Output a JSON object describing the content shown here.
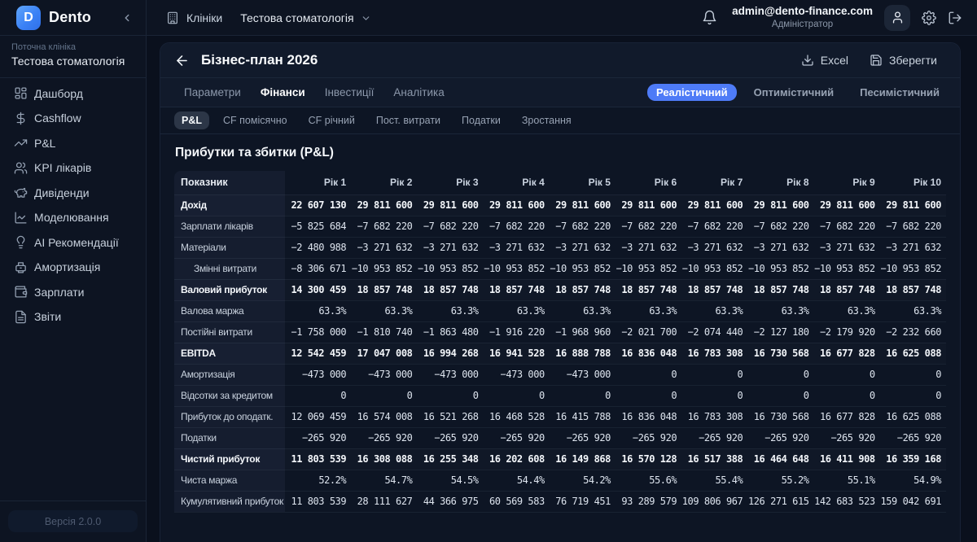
{
  "brand": {
    "logo_letter": "D",
    "name": "Dento"
  },
  "topbar": {
    "clinics_label": "Клініки",
    "clinic_selector": "Тестова стоматологія",
    "user_email": "admin@dento-finance.com",
    "user_role": "Адміністратор"
  },
  "sidebar": {
    "current_clinic_label": "Поточна клініка",
    "current_clinic": "Тестова стоматологія",
    "items": [
      {
        "id": "dashboard",
        "label": "Дашборд",
        "icon": "dashboard-icon",
        "active": false
      },
      {
        "id": "cashflow",
        "label": "Cashflow",
        "icon": "dollar-icon",
        "active": false
      },
      {
        "id": "pnl",
        "label": "P&L",
        "icon": "trending-up-icon",
        "active": false
      },
      {
        "id": "kpi-doctors",
        "label": "KPI лікарів",
        "icon": "users-icon",
        "active": false
      },
      {
        "id": "dividends",
        "label": "Дивіденди",
        "icon": "piggy-bank-icon",
        "active": false
      },
      {
        "id": "modeling",
        "label": "Моделювання",
        "icon": "chart-line-icon",
        "active": true
      },
      {
        "id": "ai-recommendations",
        "label": "AI Рекомендації",
        "icon": "lightbulb-icon",
        "active": false
      },
      {
        "id": "amortization",
        "label": "Амортизація",
        "icon": "machine-icon",
        "active": false
      },
      {
        "id": "salaries",
        "label": "Зарплати",
        "icon": "wallet-icon",
        "active": false
      },
      {
        "id": "reports",
        "label": "Звіти",
        "icon": "file-text-icon",
        "active": false
      }
    ],
    "version": "Версія 2.0.0"
  },
  "header": {
    "title": "Бізнес-план 2026",
    "excel_label": "Excel",
    "save_label": "Зберегти"
  },
  "tabs": [
    {
      "id": "parameters",
      "label": "Параметри",
      "active": false
    },
    {
      "id": "finance",
      "label": "Фінанси",
      "active": true
    },
    {
      "id": "investments",
      "label": "Інвестиції",
      "active": false
    },
    {
      "id": "analytics",
      "label": "Аналітика",
      "active": false
    }
  ],
  "scenarios": [
    {
      "id": "realistic",
      "label": "Реалістичний",
      "active": true
    },
    {
      "id": "optimistic",
      "label": "Оптимістичний",
      "active": false
    },
    {
      "id": "pessimistic",
      "label": "Песимістичний",
      "active": false
    }
  ],
  "subtabs": [
    {
      "id": "pnl",
      "label": "P&L",
      "active": true
    },
    {
      "id": "cf-monthly",
      "label": "CF помісячно",
      "active": false
    },
    {
      "id": "cf-yearly",
      "label": "CF річний",
      "active": false
    },
    {
      "id": "fixed-costs",
      "label": "Пост. витрати",
      "active": false
    },
    {
      "id": "taxes",
      "label": "Податки",
      "active": false
    },
    {
      "id": "growth",
      "label": "Зростання",
      "active": false
    }
  ],
  "section_title": "Прибутки та збитки (P&L)",
  "colors": {
    "accent": "#4e7bf7",
    "logo_gradient_start": "#60a5fa",
    "logo_gradient_end": "#2f6fe8"
  },
  "chart_data": {
    "type": "table",
    "title": "Прибутки та збитки (P&L)",
    "metric_header": "Показник",
    "year_headers": [
      "Рік 1",
      "Рік 2",
      "Рік 3",
      "Рік 4",
      "Рік 5",
      "Рік 6",
      "Рік 7",
      "Рік 8",
      "Рік 9",
      "Рік 10"
    ],
    "rows": [
      {
        "label": "Дохід",
        "bold": true,
        "indent": false,
        "values": [
          "22 607 130",
          "29 811 600",
          "29 811 600",
          "29 811 600",
          "29 811 600",
          "29 811 600",
          "29 811 600",
          "29 811 600",
          "29 811 600",
          "29 811 600"
        ]
      },
      {
        "label": "Зарплати лікарів",
        "bold": false,
        "indent": false,
        "values": [
          "−5 825 684",
          "−7 682 220",
          "−7 682 220",
          "−7 682 220",
          "−7 682 220",
          "−7 682 220",
          "−7 682 220",
          "−7 682 220",
          "−7 682 220",
          "−7 682 220"
        ]
      },
      {
        "label": "Матеріали",
        "bold": false,
        "indent": false,
        "values": [
          "−2 480 988",
          "−3 271 632",
          "−3 271 632",
          "−3 271 632",
          "−3 271 632",
          "−3 271 632",
          "−3 271 632",
          "−3 271 632",
          "−3 271 632",
          "−3 271 632"
        ]
      },
      {
        "label": "Змінні витрати",
        "bold": false,
        "indent": true,
        "values": [
          "−8 306 671",
          "−10 953 852",
          "−10 953 852",
          "−10 953 852",
          "−10 953 852",
          "−10 953 852",
          "−10 953 852",
          "−10 953 852",
          "−10 953 852",
          "−10 953 852"
        ]
      },
      {
        "label": "Валовий прибуток",
        "bold": true,
        "indent": false,
        "values": [
          "14 300 459",
          "18 857 748",
          "18 857 748",
          "18 857 748",
          "18 857 748",
          "18 857 748",
          "18 857 748",
          "18 857 748",
          "18 857 748",
          "18 857 748"
        ]
      },
      {
        "label": "Валова маржа",
        "bold": false,
        "indent": false,
        "values": [
          "63.3%",
          "63.3%",
          "63.3%",
          "63.3%",
          "63.3%",
          "63.3%",
          "63.3%",
          "63.3%",
          "63.3%",
          "63.3%"
        ]
      },
      {
        "label": "Постійні витрати",
        "bold": false,
        "indent": false,
        "values": [
          "−1 758 000",
          "−1 810 740",
          "−1 863 480",
          "−1 916 220",
          "−1 968 960",
          "−2 021 700",
          "−2 074 440",
          "−2 127 180",
          "−2 179 920",
          "−2 232 660"
        ]
      },
      {
        "label": "EBITDA",
        "bold": true,
        "indent": false,
        "values": [
          "12 542 459",
          "17 047 008",
          "16 994 268",
          "16 941 528",
          "16 888 788",
          "16 836 048",
          "16 783 308",
          "16 730 568",
          "16 677 828",
          "16 625 088"
        ]
      },
      {
        "label": "Амортизація",
        "bold": false,
        "indent": false,
        "values": [
          "−473 000",
          "−473 000",
          "−473 000",
          "−473 000",
          "−473 000",
          "0",
          "0",
          "0",
          "0",
          "0"
        ]
      },
      {
        "label": "Відсотки за кредитом",
        "bold": false,
        "indent": false,
        "values": [
          "0",
          "0",
          "0",
          "0",
          "0",
          "0",
          "0",
          "0",
          "0",
          "0"
        ]
      },
      {
        "label": "Прибуток до оподатк.",
        "bold": false,
        "indent": false,
        "values": [
          "12 069 459",
          "16 574 008",
          "16 521 268",
          "16 468 528",
          "16 415 788",
          "16 836 048",
          "16 783 308",
          "16 730 568",
          "16 677 828",
          "16 625 088"
        ]
      },
      {
        "label": "Податки",
        "bold": false,
        "indent": false,
        "values": [
          "−265 920",
          "−265 920",
          "−265 920",
          "−265 920",
          "−265 920",
          "−265 920",
          "−265 920",
          "−265 920",
          "−265 920",
          "−265 920"
        ]
      },
      {
        "label": "Чистий прибуток",
        "bold": true,
        "indent": false,
        "values": [
          "11 803 539",
          "16 308 088",
          "16 255 348",
          "16 202 608",
          "16 149 868",
          "16 570 128",
          "16 517 388",
          "16 464 648",
          "16 411 908",
          "16 359 168"
        ]
      },
      {
        "label": "Чиста маржа",
        "bold": false,
        "indent": false,
        "values": [
          "52.2%",
          "54.7%",
          "54.5%",
          "54.4%",
          "54.2%",
          "55.6%",
          "55.4%",
          "55.2%",
          "55.1%",
          "54.9%"
        ]
      },
      {
        "label": "Кумулятивний прибуток",
        "bold": false,
        "indent": false,
        "values": [
          "11 803 539",
          "28 111 627",
          "44 366 975",
          "60 569 583",
          "76 719 451",
          "93 289 579",
          "109 806 967",
          "126 271 615",
          "142 683 523",
          "159 042 691"
        ]
      }
    ]
  }
}
